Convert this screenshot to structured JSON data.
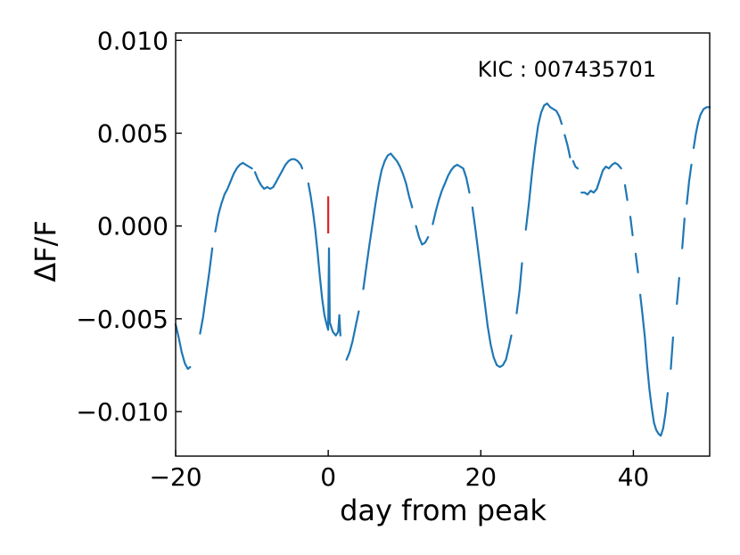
{
  "chart_data": {
    "type": "line",
    "title": "",
    "annotation": "KIC : 007435701",
    "xlabel": "day from peak",
    "ylabel": "ΔF/F",
    "xlim": [
      -20,
      50
    ],
    "ylim": [
      -0.0124,
      0.0104
    ],
    "x_ticks": [
      -20,
      0,
      20,
      40
    ],
    "x_tick_labels": [
      "−20",
      "0",
      "20",
      "40"
    ],
    "y_ticks": [
      -0.01,
      -0.005,
      0.0,
      0.005,
      0.01
    ],
    "y_tick_labels": [
      "−0.010",
      "−0.005",
      "0.000",
      "0.005",
      "0.010"
    ],
    "grid": false,
    "colors": {
      "series": "#1f77b4",
      "marker": "#d62728"
    },
    "series": [
      {
        "segments": [
          [
            [
              -20.0,
              -0.0053
            ],
            [
              -19.6,
              -0.006
            ],
            [
              -19.2,
              -0.0068
            ],
            [
              -18.8,
              -0.0074
            ],
            [
              -18.4,
              -0.0077
            ],
            [
              -18.1,
              -0.0076
            ]
          ],
          [
            [
              -16.8,
              -0.0058
            ],
            [
              -16.4,
              -0.0049
            ],
            [
              -16.0,
              -0.0037
            ],
            [
              -15.6,
              -0.0025
            ],
            [
              -15.2,
              -0.0012
            ]
          ],
          [
            [
              -14.8,
              -0.0003
            ],
            [
              -14.4,
              0.0006
            ],
            [
              -14.0,
              0.0012
            ],
            [
              -13.6,
              0.0017
            ],
            [
              -13.2,
              0.002
            ],
            [
              -12.8,
              0.0024
            ],
            [
              -12.4,
              0.0028
            ],
            [
              -12.0,
              0.0031
            ],
            [
              -11.6,
              0.0033
            ],
            [
              -11.2,
              0.0034
            ],
            [
              -10.8,
              0.0033
            ],
            [
              -10.4,
              0.0032
            ],
            [
              -10.0,
              0.0031
            ]
          ],
          [
            [
              -9.6,
              0.0029
            ],
            [
              -9.2,
              0.0025
            ],
            [
              -8.8,
              0.0022
            ],
            [
              -8.4,
              0.002
            ],
            [
              -8.0,
              0.0021
            ],
            [
              -7.6,
              0.002
            ],
            [
              -7.2,
              0.0021
            ],
            [
              -6.8,
              0.0024
            ],
            [
              -6.4,
              0.0027
            ],
            [
              -6.0,
              0.003
            ],
            [
              -5.6,
              0.0033
            ],
            [
              -5.2,
              0.0035
            ],
            [
              -4.8,
              0.0036
            ],
            [
              -4.4,
              0.0036
            ],
            [
              -4.0,
              0.0035
            ],
            [
              -3.6,
              0.0033
            ],
            [
              -3.4,
              0.0031
            ]
          ],
          [
            [
              -2.6,
              0.0023
            ],
            [
              -2.3,
              0.0016
            ],
            [
              -2.0,
              0.0008
            ],
            [
              -1.7,
              -0.0002
            ],
            [
              -1.4,
              -0.0014
            ],
            [
              -1.1,
              -0.0027
            ],
            [
              -0.8,
              -0.0039
            ],
            [
              -0.5,
              -0.0048
            ],
            [
              -0.2,
              -0.0053
            ],
            [
              0.0,
              -0.0056
            ],
            [
              0.1,
              -0.0012
            ],
            [
              0.2,
              -0.0052
            ],
            [
              0.6,
              -0.0057
            ],
            [
              1.0,
              -0.0059
            ],
            [
              1.3,
              -0.0057
            ],
            [
              1.45,
              -0.0048
            ],
            [
              1.6,
              -0.0059
            ]
          ],
          [
            [
              2.4,
              -0.0072
            ],
            [
              2.8,
              -0.0068
            ],
            [
              3.2,
              -0.0062
            ],
            [
              3.6,
              -0.0054
            ],
            [
              4.0,
              -0.0046
            ]
          ],
          [
            [
              4.6,
              -0.0034
            ],
            [
              5.0,
              -0.0022
            ],
            [
              5.4,
              -0.001
            ],
            [
              5.8,
              0.0001
            ],
            [
              6.2,
              0.0012
            ],
            [
              6.6,
              0.0022
            ],
            [
              7.0,
              0.003
            ],
            [
              7.4,
              0.0035
            ],
            [
              7.8,
              0.0038
            ],
            [
              8.2,
              0.0039
            ],
            [
              8.6,
              0.0037
            ],
            [
              9.0,
              0.0035
            ],
            [
              9.4,
              0.0032
            ],
            [
              9.8,
              0.0028
            ],
            [
              10.2,
              0.0023
            ],
            [
              10.6,
              0.0016
            ],
            [
              11.0,
              0.001
            ]
          ],
          [
            [
              11.5,
              0.0
            ],
            [
              11.9,
              -0.0006
            ],
            [
              12.3,
              -0.001
            ],
            [
              12.7,
              -0.0009
            ],
            [
              13.1,
              -0.0006
            ]
          ],
          [
            [
              13.7,
              0.0001
            ],
            [
              14.1,
              0.0008
            ],
            [
              14.5,
              0.0014
            ],
            [
              14.9,
              0.0019
            ],
            [
              15.3,
              0.0023
            ],
            [
              15.7,
              0.0027
            ],
            [
              16.1,
              0.003
            ],
            [
              16.5,
              0.0032
            ],
            [
              16.9,
              0.0033
            ],
            [
              17.3,
              0.0032
            ],
            [
              17.7,
              0.0031
            ],
            [
              18.1,
              0.0026
            ],
            [
              18.5,
              0.0018
            ]
          ],
          [
            [
              18.9,
              0.001
            ],
            [
              19.3,
              -0.0002
            ],
            [
              19.7,
              -0.0015
            ],
            [
              20.1,
              -0.0028
            ],
            [
              20.5,
              -0.0041
            ],
            [
              20.9,
              -0.0054
            ],
            [
              21.3,
              -0.0064
            ],
            [
              21.7,
              -0.0071
            ],
            [
              22.1,
              -0.0075
            ],
            [
              22.5,
              -0.0076
            ],
            [
              22.9,
              -0.0075
            ],
            [
              23.3,
              -0.0072
            ],
            [
              23.7,
              -0.0065
            ],
            [
              24.0,
              -0.0059
            ]
          ],
          [
            [
              24.7,
              -0.0047
            ],
            [
              25.1,
              -0.0034
            ],
            [
              25.4,
              -0.002
            ]
          ],
          [
            [
              25.9,
              -0.0002
            ],
            [
              26.3,
              0.0012
            ],
            [
              26.7,
              0.0028
            ],
            [
              27.1,
              0.0042
            ],
            [
              27.5,
              0.0054
            ],
            [
              27.9,
              0.0061
            ],
            [
              28.3,
              0.0065
            ],
            [
              28.7,
              0.0066
            ],
            [
              29.1,
              0.0064
            ],
            [
              29.5,
              0.0063
            ],
            [
              29.9,
              0.0062
            ],
            [
              30.3,
              0.0059
            ],
            [
              30.6,
              0.0055
            ]
          ],
          [
            [
              31.0,
              0.0049
            ],
            [
              31.4,
              0.0043
            ],
            [
              31.7,
              0.0037
            ]
          ],
          [
            [
              32.1,
              0.0035
            ],
            [
              32.4,
              0.0032
            ],
            [
              32.7,
              0.0031
            ]
          ],
          [
            [
              33.2,
              0.0018
            ],
            [
              33.6,
              0.0018
            ],
            [
              34.0,
              0.0017
            ],
            [
              34.4,
              0.0019
            ],
            [
              34.8,
              0.0018
            ],
            [
              35.2,
              0.002
            ],
            [
              35.6,
              0.0025
            ],
            [
              36.0,
              0.003
            ],
            [
              36.4,
              0.0032
            ],
            [
              36.8,
              0.0031
            ],
            [
              37.2,
              0.0033
            ],
            [
              37.6,
              0.0034
            ],
            [
              38.0,
              0.0033
            ],
            [
              38.4,
              0.0031
            ]
          ],
          [
            [
              38.9,
              0.0022
            ],
            [
              39.2,
              0.0014
            ]
          ],
          [
            [
              39.6,
              0.0005
            ],
            [
              39.9,
              -0.0005
            ]
          ],
          [
            [
              40.3,
              -0.0015
            ],
            [
              40.6,
              -0.0025
            ]
          ],
          [
            [
              40.9,
              -0.0037
            ],
            [
              41.2,
              -0.0048
            ],
            [
              41.5,
              -0.006
            ],
            [
              41.8,
              -0.0075
            ],
            [
              42.1,
              -0.0088
            ],
            [
              42.4,
              -0.0098
            ],
            [
              42.7,
              -0.0106
            ],
            [
              43.0,
              -0.011
            ],
            [
              43.3,
              -0.0112
            ],
            [
              43.6,
              -0.0113
            ],
            [
              43.9,
              -0.0109
            ],
            [
              44.2,
              -0.0101
            ],
            [
              44.5,
              -0.009
            ]
          ],
          [
            [
              44.9,
              -0.0077
            ],
            [
              45.2,
              -0.006
            ]
          ],
          [
            [
              45.7,
              -0.0042
            ],
            [
              46.0,
              -0.0028
            ]
          ],
          [
            [
              46.4,
              -0.0012
            ],
            [
              46.7,
              0.0004
            ]
          ],
          [
            [
              47.0,
              0.0012
            ],
            [
              47.3,
              0.0024
            ],
            [
              47.6,
              0.0033
            ]
          ],
          [
            [
              47.9,
              0.0042
            ],
            [
              48.2,
              0.005
            ],
            [
              48.5,
              0.0056
            ],
            [
              48.8,
              0.006
            ],
            [
              49.2,
              0.0063
            ],
            [
              49.6,
              0.0064
            ],
            [
              50.0,
              0.0064
            ]
          ]
        ]
      }
    ],
    "vertical_marker": {
      "x": 0,
      "y_range": [
        -0.0004,
        0.0016
      ]
    }
  }
}
